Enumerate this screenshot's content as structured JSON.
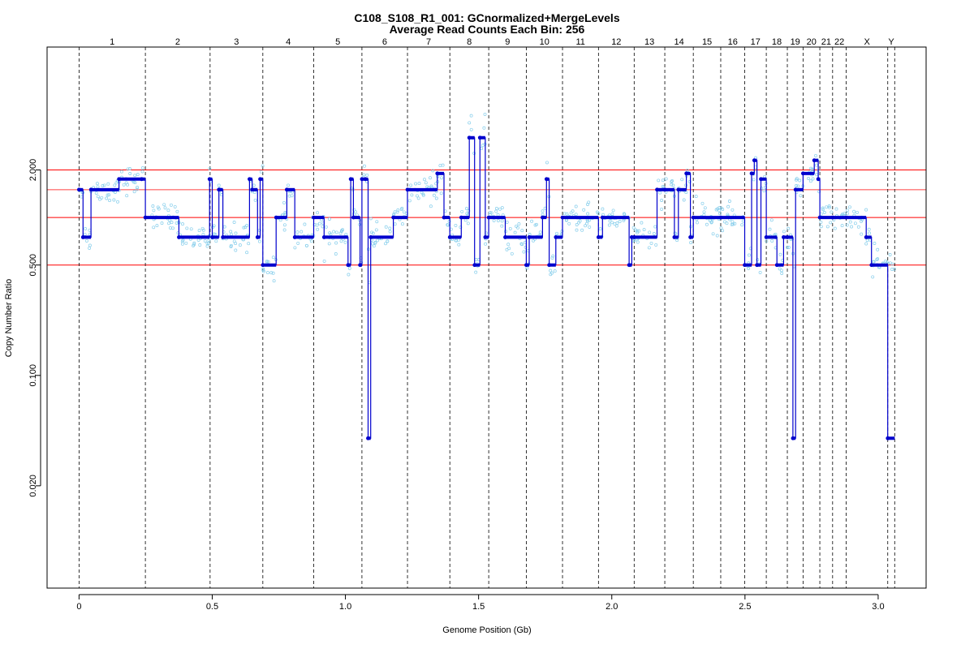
{
  "chart_data": {
    "type": "scatter",
    "title": "C108_S108_R1_001: GCnormalized+MergeLevels",
    "subtitle": "Average Read Counts Each Bin:  256",
    "xlabel": "Genome Position (Gb)",
    "ylabel": "Copy Number Ratio",
    "xlim": [
      -0.12,
      3.18
    ],
    "ylim": [
      0.0045,
      12.0
    ],
    "y_scale": "log",
    "x_ticks": [
      0,
      0.5,
      1.0,
      1.5,
      2.0,
      2.5,
      3.0
    ],
    "x_tick_labels": [
      "0",
      "0.5",
      "1.0",
      "1.5",
      "2.0",
      "2.5",
      "3.0"
    ],
    "y_ticks": [
      0.02,
      0.1,
      0.5,
      2.0
    ],
    "y_tick_labels": [
      "0.020",
      "0.100",
      "0.500",
      "2.000"
    ],
    "grid": false,
    "reference_lines": [
      2.0,
      1.5,
      1.0,
      0.5
    ],
    "chromosomes": [
      {
        "label": "1",
        "start": 0.0,
        "end": 0.249
      },
      {
        "label": "2",
        "start": 0.249,
        "end": 0.492
      },
      {
        "label": "3",
        "start": 0.492,
        "end": 0.69
      },
      {
        "label": "4",
        "start": 0.69,
        "end": 0.881
      },
      {
        "label": "5",
        "start": 0.881,
        "end": 1.062
      },
      {
        "label": "6",
        "start": 1.062,
        "end": 1.233
      },
      {
        "label": "7",
        "start": 1.233,
        "end": 1.392
      },
      {
        "label": "8",
        "start": 1.392,
        "end": 1.538
      },
      {
        "label": "9",
        "start": 1.538,
        "end": 1.679
      },
      {
        "label": "10",
        "start": 1.679,
        "end": 1.815
      },
      {
        "label": "11",
        "start": 1.815,
        "end": 1.95
      },
      {
        "label": "12",
        "start": 1.95,
        "end": 2.084
      },
      {
        "label": "13",
        "start": 2.084,
        "end": 2.199
      },
      {
        "label": "14",
        "start": 2.199,
        "end": 2.306
      },
      {
        "label": "15",
        "start": 2.306,
        "end": 2.409
      },
      {
        "label": "16",
        "start": 2.409,
        "end": 2.499
      },
      {
        "label": "17",
        "start": 2.499,
        "end": 2.58
      },
      {
        "label": "18",
        "start": 2.58,
        "end": 2.659
      },
      {
        "label": "19",
        "start": 2.659,
        "end": 2.718
      },
      {
        "label": "20",
        "start": 2.718,
        "end": 2.781
      },
      {
        "label": "21",
        "start": 2.781,
        "end": 2.829
      },
      {
        "label": "22",
        "start": 2.829,
        "end": 2.88
      },
      {
        "label": "X",
        "start": 2.88,
        "end": 3.036
      },
      {
        "label": "Y",
        "start": 3.036,
        "end": 3.062
      }
    ],
    "segments": [
      [
        0.0,
        0.015,
        1.5
      ],
      [
        0.015,
        0.045,
        0.75
      ],
      [
        0.045,
        0.15,
        1.5
      ],
      [
        0.15,
        0.235,
        1.75
      ],
      [
        0.235,
        0.249,
        1.75
      ],
      [
        0.249,
        0.375,
        1.0
      ],
      [
        0.375,
        0.49,
        0.75
      ],
      [
        0.49,
        0.5,
        1.75
      ],
      [
        0.5,
        0.525,
        0.75
      ],
      [
        0.525,
        0.54,
        1.5
      ],
      [
        0.54,
        0.64,
        0.75
      ],
      [
        0.64,
        0.65,
        1.75
      ],
      [
        0.65,
        0.67,
        1.5
      ],
      [
        0.67,
        0.68,
        0.75
      ],
      [
        0.68,
        0.69,
        1.75
      ],
      [
        0.69,
        0.74,
        0.5
      ],
      [
        0.74,
        0.78,
        1.0
      ],
      [
        0.78,
        0.81,
        1.5
      ],
      [
        0.81,
        0.881,
        0.75
      ],
      [
        0.881,
        0.92,
        1.0
      ],
      [
        0.92,
        1.01,
        0.75
      ],
      [
        1.01,
        1.02,
        0.5
      ],
      [
        1.02,
        1.03,
        1.75
      ],
      [
        1.03,
        1.055,
        1.0
      ],
      [
        1.055,
        1.062,
        0.5
      ],
      [
        1.062,
        1.075,
        1.75
      ],
      [
        1.075,
        1.085,
        1.75
      ],
      [
        1.085,
        1.095,
        0.04
      ],
      [
        1.095,
        1.18,
        0.75
      ],
      [
        1.18,
        1.233,
        1.0
      ],
      [
        1.233,
        1.345,
        1.5
      ],
      [
        1.345,
        1.37,
        1.9
      ],
      [
        1.37,
        1.392,
        1.0
      ],
      [
        1.392,
        1.435,
        0.75
      ],
      [
        1.435,
        1.465,
        1.0
      ],
      [
        1.465,
        1.485,
        3.2
      ],
      [
        1.485,
        1.505,
        0.5
      ],
      [
        1.505,
        1.525,
        3.2
      ],
      [
        1.525,
        1.538,
        0.75
      ],
      [
        1.538,
        1.6,
        1.0
      ],
      [
        1.6,
        1.679,
        0.75
      ],
      [
        1.679,
        1.69,
        0.5
      ],
      [
        1.69,
        1.74,
        0.75
      ],
      [
        1.74,
        1.755,
        1.0
      ],
      [
        1.755,
        1.765,
        1.75
      ],
      [
        1.765,
        1.79,
        0.5
      ],
      [
        1.79,
        1.815,
        0.75
      ],
      [
        1.815,
        1.95,
        1.0
      ],
      [
        1.95,
        1.965,
        0.75
      ],
      [
        1.965,
        2.065,
        1.0
      ],
      [
        2.065,
        2.075,
        0.5
      ],
      [
        2.075,
        2.084,
        0.75
      ],
      [
        2.084,
        2.17,
        0.75
      ],
      [
        2.17,
        2.199,
        1.5
      ],
      [
        2.199,
        2.235,
        1.5
      ],
      [
        2.235,
        2.25,
        0.75
      ],
      [
        2.25,
        2.28,
        1.5
      ],
      [
        2.28,
        2.295,
        1.9
      ],
      [
        2.295,
        2.306,
        0.75
      ],
      [
        2.306,
        2.409,
        1.0
      ],
      [
        2.409,
        2.499,
        1.0
      ],
      [
        2.499,
        2.525,
        0.5
      ],
      [
        2.525,
        2.535,
        1.9
      ],
      [
        2.535,
        2.545,
        2.3
      ],
      [
        2.545,
        2.56,
        0.5
      ],
      [
        2.56,
        2.58,
        1.75
      ],
      [
        2.58,
        2.62,
        0.75
      ],
      [
        2.62,
        2.645,
        0.5
      ],
      [
        2.645,
        2.659,
        0.75
      ],
      [
        2.659,
        2.68,
        0.75
      ],
      [
        2.68,
        2.69,
        0.04
      ],
      [
        2.69,
        2.718,
        1.5
      ],
      [
        2.718,
        2.76,
        1.9
      ],
      [
        2.76,
        2.775,
        2.3
      ],
      [
        2.775,
        2.781,
        1.75
      ],
      [
        2.781,
        2.829,
        1.0
      ],
      [
        2.829,
        2.88,
        1.0
      ],
      [
        2.88,
        2.955,
        1.0
      ],
      [
        2.955,
        2.975,
        0.75
      ],
      [
        2.975,
        3.036,
        0.5
      ],
      [
        3.036,
        3.062,
        0.04
      ]
    ],
    "series": [
      {
        "name": "",
        "role": "scatter",
        "color": "#87ceeb"
      },
      {
        "name": "",
        "role": "step",
        "color": "#0000cd"
      }
    ],
    "reference_line_colors": [
      "#ff0000",
      "#ff4040",
      "#ff0000",
      "#ff0000"
    ]
  }
}
